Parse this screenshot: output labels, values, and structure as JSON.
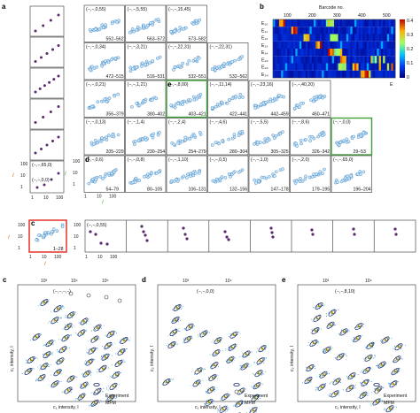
{
  "panel_letters": {
    "a": "a",
    "b": "b",
    "c": "c",
    "d": "d",
    "e": "e"
  },
  "panel_a": {
    "row_labels": [
      "(−,−,0,55)",
      "(−,−,5,55)",
      "(−,−,15,45)",
      "(−,−,0,34)",
      "(−,−,3,21)",
      "(−,−,22,31)",
      "(−,−,0,21)",
      "(−,−,8,00)",
      "(−,−,11,14)",
      "(−,−,23,16)",
      "(−,−,40,20)",
      "(−,−,0,13)",
      "(−,−,2,4)",
      "(−,−,4,6)",
      "(−,−,5,5)",
      "(−,−,0,6)",
      "(−,−,0,8)",
      "(−,−,1,10)",
      "(−,−,0,5)",
      "(−,−,1,0)",
      "(−,−,2,0)",
      "(−,−,65,0)",
      "(−,−,0,0)"
    ],
    "cells": [
      {
        "id": "r0c0",
        "label": "(−,−,0,55)",
        "range": "552–562"
      },
      {
        "id": "r0c1",
        "label": "(−,−,5,55)",
        "range": "563–572"
      },
      {
        "id": "r0c2",
        "label": "(−,−,15,45)",
        "range": "573–582"
      },
      {
        "id": "r1c0",
        "label": "(−,−,0,34)",
        "range": "472–515"
      },
      {
        "id": "r1c1",
        "label": "(−,−,3,21)",
        "range": "516–531"
      },
      {
        "id": "r1c2",
        "label": "(−,−,22,31)",
        "range": "532–551"
      },
      {
        "id": "r1c3",
        "label": "(−,−,22,31)",
        "range": "532–562"
      },
      {
        "id": "r2c0",
        "label": "(−,−,0,21)",
        "range": "356–379"
      },
      {
        "id": "r2c1",
        "label": "(−,−,1,21)",
        "range": "380–402"
      },
      {
        "id": "r2c2",
        "label": "(−,−,8,00)",
        "range": "403–421"
      },
      {
        "id": "r2c3",
        "label": "(−,−,11,14)",
        "range": "422–441"
      },
      {
        "id": "r2c4",
        "label": "(−,−,23,16)",
        "range": "442–459"
      },
      {
        "id": "r2c5",
        "label": "(−,−,40,20)",
        "range": "460–471"
      },
      {
        "id": "r3c0",
        "label": "(−,−,0,13)",
        "range": "205–229"
      },
      {
        "id": "r3c1",
        "label": "(−,−,1,4)",
        "range": "230–254"
      },
      {
        "id": "r3c2",
        "label": "(−,−,2,4)",
        "range": "254–279"
      },
      {
        "id": "r3c3",
        "label": "(−,−,4,6)",
        "range": "280–304"
      },
      {
        "id": "r3c4",
        "label": "(−,−,5,5)",
        "range": "305–325"
      },
      {
        "id": "r3c5",
        "label": "(−,−,8,6)",
        "range": "326–342"
      },
      {
        "id": "r4c0",
        "label": "(−,−,0,0)",
        "range": "29–53"
      },
      {
        "id": "r4c1",
        "label": "(−,−,0,6)",
        "range": "54–79"
      },
      {
        "id": "r4c2",
        "label": "(−,−,0,8)",
        "range": "80–105"
      },
      {
        "id": "r4c3",
        "label": "(−,−,1,10)",
        "range": "106–131"
      },
      {
        "id": "r4c4",
        "label": "(−,−,0,5)",
        "range": "132–156"
      },
      {
        "id": "r4c5",
        "label": "(−,−,1,0)",
        "range": "147–178"
      },
      {
        "id": "r4c6",
        "label": "(−,−,2,0)",
        "range": "179–195"
      },
      {
        "id": "r4c7",
        "label": "(−,−,65,0)",
        "range": "196–204"
      }
    ],
    "left_stack_labels": [
      "(−,−,65,0)",
      "(−,−,0,0)"
    ],
    "c_label": "(−,−,0,55)",
    "c_range": "1–28",
    "axis_ticks": [
      "1",
      "10",
      "100"
    ],
    "y_axis_label": "I",
    "x_axis_label": "I"
  },
  "panel_b": {
    "title": "Barcode no.",
    "x_ticks": [
      "100",
      "200",
      "300",
      "400",
      "500"
    ],
    "row_labels": [
      "E₁₀",
      "E₁₁",
      "E₁₂",
      "E₁₃",
      "E₁₄",
      "E₂₃",
      "E₂₄",
      "E₃₄"
    ],
    "cbar_ticks": [
      "0.4",
      "0.3",
      "0.2",
      "0.1",
      "0"
    ],
    "cbar_label": "E"
  },
  "panel_c": {
    "top_ticks": [
      "10³",
      "10⁴",
      "10⁵"
    ],
    "cell_label": "(−,−,−,−)",
    "ylabel": "c₁ intensity, I",
    "xlabel": "c₁ intensity, I",
    "legend": [
      "Experiment",
      "MFM"
    ]
  },
  "panel_d": {
    "top_ticks": [
      "10³",
      "10⁴"
    ],
    "cell_label": "(−,−,0,0)",
    "ylabel": "c₂ intensity, I",
    "xlabel": "c₁ intensity, I",
    "legend": [
      "Experiment",
      "MFM"
    ]
  },
  "panel_e": {
    "top_ticks": [
      "10³",
      "10⁴"
    ],
    "cell_label": "(−,−,8,10)",
    "ylabel": "c₂ intensity, I",
    "xlabel": "c₁ intensity, I",
    "legend": [
      "Experiment",
      "MFM"
    ]
  },
  "colors": {
    "dot": "#5b2a6e",
    "ring": "#3b86c6",
    "ring_fill": "#cfe6f6",
    "green": "#3e9e3a",
    "red": "#e0241b",
    "orange": "#d4711c"
  }
}
